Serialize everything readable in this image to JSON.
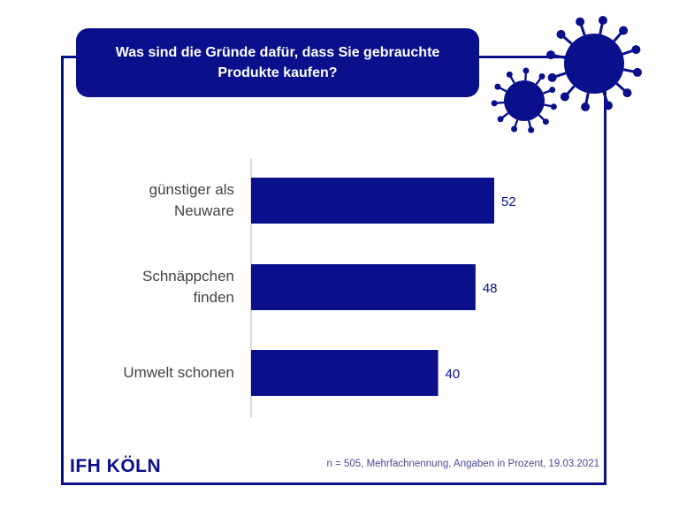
{
  "title": "Was sind die Gründe dafür, dass Sie gebrauchte Produkte kaufen?",
  "logo": "IFH KÖLN",
  "footnote": "n = 505, Mehrfachnennung, Angaben in Prozent, 19.03.2021",
  "colors": {
    "accent": "#0a0f8c",
    "label": "#444444"
  },
  "chart_data": {
    "type": "bar",
    "orientation": "horizontal",
    "title": "Was sind die Gründe dafür, dass Sie gebrauchte Produkte kaufen?",
    "categories": [
      "günstiger als Neuware",
      "Schnäppchen finden",
      "Umwelt schonen"
    ],
    "category_lines": [
      [
        "günstiger als",
        "Neuware"
      ],
      [
        "Schnäppchen",
        "finden"
      ],
      [
        "Umwelt schonen"
      ]
    ],
    "values": [
      52,
      48,
      40
    ],
    "value_labels": [
      "52",
      "48",
      "40"
    ],
    "xlim": [
      0,
      100
    ],
    "grid": false,
    "legend": "none"
  }
}
